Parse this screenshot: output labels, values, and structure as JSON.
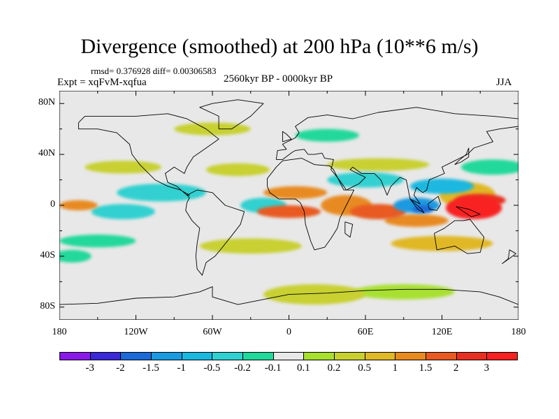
{
  "title": "Divergence (smoothed) at 200 hPa (10**6 m/s)",
  "stats_text": "rmsd= 0.376928 diff= 0.00306583",
  "experiment_text": "Expt = xqFvM-xqfua",
  "period_text": "2560kyr BP - 0000kyr BP",
  "season_text": "JJA",
  "map": {
    "projection": "cylindrical-equidistant",
    "lon_range": [
      -180,
      180
    ],
    "lat_range": [
      -90,
      90
    ],
    "land_outline_color": "#000000",
    "background_color": "#e8e8e8",
    "x_ticks": [
      {
        "lon": -180,
        "label": "180"
      },
      {
        "lon": -120,
        "label": "120W"
      },
      {
        "lon": -60,
        "label": "60W"
      },
      {
        "lon": 0,
        "label": "0"
      },
      {
        "lon": 60,
        "label": "60E"
      },
      {
        "lon": 120,
        "label": "120E"
      },
      {
        "lon": 180,
        "label": "180"
      }
    ],
    "y_ticks": [
      {
        "lat": 80,
        "label": "80N"
      },
      {
        "lat": 40,
        "label": "40N"
      },
      {
        "lat": 0,
        "label": "0"
      },
      {
        "lat": -40,
        "label": "40S"
      },
      {
        "lat": -80,
        "label": "80S"
      }
    ],
    "blobs": [
      {
        "lon": 145,
        "lat": -2,
        "rlon": 22,
        "rlat": 9,
        "level": 3
      },
      {
        "lon": 150,
        "lat": 4,
        "rlon": 20,
        "rlat": 5,
        "level": 2
      },
      {
        "lon": 140,
        "lat": 8,
        "rlon": 22,
        "rlat": 10,
        "level": 0.5
      },
      {
        "lon": 100,
        "lat": -12,
        "rlon": 25,
        "rlat": 5,
        "level": 1
      },
      {
        "lon": 70,
        "lat": -5,
        "rlon": 22,
        "rlat": 6,
        "level": 1.5
      },
      {
        "lon": 45,
        "lat": 0,
        "rlon": 20,
        "rlat": 8,
        "level": 1
      },
      {
        "lon": 0,
        "lat": -5,
        "rlon": 25,
        "rlat": 5,
        "level": 1.5
      },
      {
        "lon": 5,
        "lat": 10,
        "rlon": 25,
        "rlat": 5,
        "level": 1
      },
      {
        "lon": -165,
        "lat": 0,
        "rlon": 15,
        "rlat": 4,
        "level": 1
      },
      {
        "lon": 100,
        "lat": 0,
        "rlon": 18,
        "rlat": 6,
        "level": -1.5
      },
      {
        "lon": 105,
        "lat": -3,
        "rlon": 8,
        "rlat": 3,
        "level": -2
      },
      {
        "lon": 120,
        "lat": 15,
        "rlon": 25,
        "rlat": 6,
        "level": -1
      },
      {
        "lon": -100,
        "lat": 10,
        "rlon": 35,
        "rlat": 7,
        "level": -0.5
      },
      {
        "lon": -130,
        "lat": -5,
        "rlon": 25,
        "rlat": 6,
        "level": -0.5
      },
      {
        "lon": -20,
        "lat": 0,
        "rlon": 18,
        "rlat": 6,
        "level": -0.5
      },
      {
        "lon": 60,
        "lat": 20,
        "rlon": 30,
        "rlat": 6,
        "level": -0.5
      },
      {
        "lon": 70,
        "lat": 32,
        "rlon": 40,
        "rlat": 5,
        "level": 0.2
      },
      {
        "lon": 160,
        "lat": 30,
        "rlon": 25,
        "rlat": 6,
        "level": -0.2
      },
      {
        "lon": -130,
        "lat": 30,
        "rlon": 30,
        "rlat": 5,
        "level": 0.2
      },
      {
        "lon": -40,
        "lat": 28,
        "rlon": 25,
        "rlat": 5,
        "level": 0.2
      },
      {
        "lon": -30,
        "lat": -32,
        "rlon": 40,
        "rlat": 6,
        "level": 0.2
      },
      {
        "lon": 120,
        "lat": -30,
        "rlon": 40,
        "rlat": 6,
        "level": 0.5
      },
      {
        "lon": -150,
        "lat": -28,
        "rlon": 30,
        "rlat": 5,
        "level": -0.2
      },
      {
        "lon": 20,
        "lat": -70,
        "rlon": 40,
        "rlat": 8,
        "level": 0.2
      },
      {
        "lon": 90,
        "lat": -68,
        "rlon": 40,
        "rlat": 6,
        "level": 0.1
      },
      {
        "lon": -60,
        "lat": 60,
        "rlon": 30,
        "rlat": 5,
        "level": 0.2
      },
      {
        "lon": 30,
        "lat": 55,
        "rlon": 25,
        "rlat": 5,
        "level": -0.2
      },
      {
        "lon": -170,
        "lat": -40,
        "rlon": 15,
        "rlat": 5,
        "level": -0.2
      }
    ],
    "landmasses": [
      {
        "name": "North America",
        "points": [
          [
            -165,
            65
          ],
          [
            -160,
            70
          ],
          [
            -140,
            70
          ],
          [
            -120,
            70
          ],
          [
            -95,
            72
          ],
          [
            -80,
            68
          ],
          [
            -65,
            60
          ],
          [
            -55,
            52
          ],
          [
            -65,
            45
          ],
          [
            -75,
            38
          ],
          [
            -80,
            30
          ],
          [
            -82,
            25
          ],
          [
            -90,
            30
          ],
          [
            -97,
            25
          ],
          [
            -95,
            18
          ],
          [
            -88,
            15
          ],
          [
            -80,
            8
          ],
          [
            -78,
            8
          ],
          [
            -85,
            12
          ],
          [
            -95,
            15
          ],
          [
            -105,
            20
          ],
          [
            -110,
            25
          ],
          [
            -117,
            32
          ],
          [
            -123,
            40
          ],
          [
            -125,
            48
          ],
          [
            -135,
            57
          ],
          [
            -150,
            60
          ],
          [
            -165,
            60
          ],
          [
            -165,
            65
          ]
        ]
      },
      {
        "name": "Greenland",
        "points": [
          [
            -55,
            60
          ],
          [
            -45,
            60
          ],
          [
            -30,
            70
          ],
          [
            -20,
            80
          ],
          [
            -40,
            83
          ],
          [
            -60,
            80
          ],
          [
            -70,
            77
          ],
          [
            -55,
            70
          ],
          [
            -55,
            60
          ]
        ]
      },
      {
        "name": "South America",
        "points": [
          [
            -80,
            8
          ],
          [
            -72,
            12
          ],
          [
            -60,
            10
          ],
          [
            -50,
            0
          ],
          [
            -35,
            -5
          ],
          [
            -38,
            -15
          ],
          [
            -45,
            -24
          ],
          [
            -53,
            -34
          ],
          [
            -58,
            -40
          ],
          [
            -65,
            -45
          ],
          [
            -68,
            -55
          ],
          [
            -72,
            -50
          ],
          [
            -73,
            -40
          ],
          [
            -72,
            -30
          ],
          [
            -70,
            -18
          ],
          [
            -76,
            -12
          ],
          [
            -81,
            -4
          ],
          [
            -80,
            2
          ],
          [
            -78,
            6
          ],
          [
            -80,
            8
          ]
        ]
      },
      {
        "name": "Eurasia",
        "points": [
          [
            -10,
            36
          ],
          [
            -9,
            43
          ],
          [
            -2,
            44
          ],
          [
            -5,
            48
          ],
          [
            5,
            53
          ],
          [
            8,
            57
          ],
          [
            5,
            62
          ],
          [
            15,
            69
          ],
          [
            30,
            71
          ],
          [
            50,
            68
          ],
          [
            70,
            73
          ],
          [
            100,
            77
          ],
          [
            130,
            72
          ],
          [
            160,
            70
          ],
          [
            180,
            68
          ],
          [
            180,
            62
          ],
          [
            165,
            60
          ],
          [
            155,
            58
          ],
          [
            160,
            50
          ],
          [
            145,
            45
          ],
          [
            140,
            40
          ],
          [
            130,
            35
          ],
          [
            120,
            30
          ],
          [
            122,
            25
          ],
          [
            110,
            20
          ],
          [
            108,
            12
          ],
          [
            105,
            10
          ],
          [
            100,
            14
          ],
          [
            98,
            8
          ],
          [
            103,
            1
          ],
          [
            95,
            5
          ],
          [
            92,
            20
          ],
          [
            87,
            22
          ],
          [
            80,
            15
          ],
          [
            77,
            8
          ],
          [
            72,
            20
          ],
          [
            67,
            25
          ],
          [
            57,
            25
          ],
          [
            50,
            30
          ],
          [
            48,
            28
          ],
          [
            56,
            24
          ],
          [
            60,
            22
          ],
          [
            55,
            17
          ],
          [
            45,
            12
          ],
          [
            43,
            15
          ],
          [
            38,
            22
          ],
          [
            33,
            28
          ],
          [
            35,
            36
          ],
          [
            28,
            37
          ],
          [
            26,
            41
          ],
          [
            20,
            40
          ],
          [
            15,
            40
          ],
          [
            12,
            44
          ],
          [
            5,
            43
          ],
          [
            3,
            42
          ],
          [
            -5,
            36
          ],
          [
            -10,
            36
          ]
        ]
      },
      {
        "name": "Africa",
        "points": [
          [
            -17,
            15
          ],
          [
            -17,
            21
          ],
          [
            -10,
            30
          ],
          [
            -5,
            35
          ],
          [
            10,
            37
          ],
          [
            20,
            32
          ],
          [
            32,
            31
          ],
          [
            35,
            28
          ],
          [
            43,
            12
          ],
          [
            51,
            12
          ],
          [
            45,
            0
          ],
          [
            40,
            -10
          ],
          [
            38,
            -18
          ],
          [
            33,
            -26
          ],
          [
            28,
            -33
          ],
          [
            20,
            -35
          ],
          [
            17,
            -28
          ],
          [
            13,
            -15
          ],
          [
            12,
            -5
          ],
          [
            9,
            2
          ],
          [
            5,
            5
          ],
          [
            -8,
            5
          ],
          [
            -15,
            10
          ],
          [
            -17,
            15
          ]
        ]
      },
      {
        "name": "Madagascar",
        "points": [
          [
            44,
            -13
          ],
          [
            50,
            -15
          ],
          [
            48,
            -25
          ],
          [
            44,
            -22
          ],
          [
            44,
            -13
          ]
        ]
      },
      {
        "name": "Australia",
        "points": [
          [
            114,
            -22
          ],
          [
            122,
            -18
          ],
          [
            130,
            -12
          ],
          [
            137,
            -12
          ],
          [
            142,
            -11
          ],
          [
            145,
            -15
          ],
          [
            153,
            -25
          ],
          [
            150,
            -37
          ],
          [
            140,
            -38
          ],
          [
            130,
            -32
          ],
          [
            116,
            -35
          ],
          [
            114,
            -22
          ]
        ]
      },
      {
        "name": "Borneo",
        "points": [
          [
            109,
            1
          ],
          [
            117,
            7
          ],
          [
            119,
            1
          ],
          [
            116,
            -4
          ],
          [
            110,
            -3
          ],
          [
            109,
            1
          ]
        ]
      },
      {
        "name": "Sumatra",
        "points": [
          [
            95,
            5
          ],
          [
            104,
            -3
          ],
          [
            106,
            -6
          ],
          [
            101,
            -3
          ],
          [
            95,
            5
          ]
        ]
      },
      {
        "name": "New Guinea",
        "points": [
          [
            131,
            -1
          ],
          [
            141,
            -3
          ],
          [
            150,
            -7
          ],
          [
            143,
            -9
          ],
          [
            137,
            -5
          ],
          [
            131,
            -1
          ]
        ]
      },
      {
        "name": "Japan",
        "points": [
          [
            130,
            32
          ],
          [
            135,
            34
          ],
          [
            141,
            38
          ],
          [
            141,
            45
          ],
          [
            139,
            40
          ],
          [
            133,
            35
          ],
          [
            130,
            32
          ]
        ]
      },
      {
        "name": "UK",
        "points": [
          [
            -5,
            50
          ],
          [
            2,
            52
          ],
          [
            -2,
            56
          ],
          [
            -5,
            58
          ],
          [
            -5,
            50
          ]
        ]
      },
      {
        "name": "New Zealand",
        "points": [
          [
            167,
            -46
          ],
          [
            174,
            -41
          ],
          [
            178,
            -38
          ],
          [
            173,
            -35
          ],
          [
            172,
            -42
          ],
          [
            167,
            -46
          ]
        ]
      },
      {
        "name": "Antarctica",
        "points": [
          [
            -180,
            -78
          ],
          [
            -150,
            -77
          ],
          [
            -120,
            -73
          ],
          [
            -90,
            -72
          ],
          [
            -70,
            -68
          ],
          [
            -60,
            -64
          ],
          [
            -60,
            -72
          ],
          [
            -40,
            -78
          ],
          [
            -20,
            -74
          ],
          [
            0,
            -70
          ],
          [
            30,
            -69
          ],
          [
            60,
            -67
          ],
          [
            90,
            -66
          ],
          [
            120,
            -66
          ],
          [
            150,
            -68
          ],
          [
            165,
            -72
          ],
          [
            180,
            -78
          ]
        ]
      }
    ]
  },
  "colorbar": {
    "levels": [
      "-3",
      "-2",
      "-1.5",
      "-1",
      "-0.5",
      "-0.2",
      "-0.1",
      "0.1",
      "0.2",
      "0.5",
      "1",
      "1.5",
      "2",
      "3"
    ],
    "colors": [
      "#8a1ae8",
      "#3a2ad8",
      "#1a6ad8",
      "#1a9ae0",
      "#1ab8e0",
      "#30d0d0",
      "#20d89a",
      "#e8e8e8",
      "#a8e030",
      "#c8d030",
      "#e0b828",
      "#e88a20",
      "#e85a20",
      "#e83020",
      "#f82020"
    ]
  }
}
